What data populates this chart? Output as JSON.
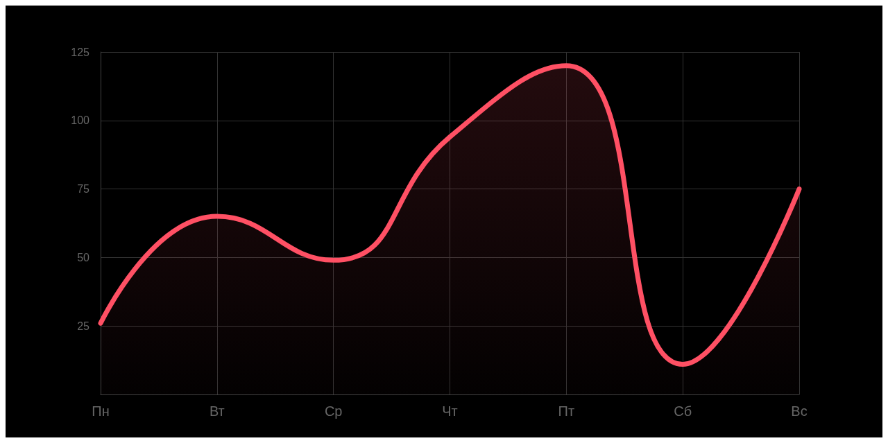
{
  "chart_data": {
    "type": "area",
    "categories": [
      "Пн",
      "Вт",
      "Ср",
      "Чт",
      "Пт",
      "Сб",
      "Вс"
    ],
    "series": [
      {
        "color": "#ff5064",
        "values": [
          26,
          65,
          49,
          94,
          120,
          11,
          75
        ]
      }
    ],
    "ylim": [
      0,
      125
    ],
    "yticks": [
      25,
      50,
      75,
      100,
      125
    ],
    "grid": true,
    "marker": "none",
    "line_style": "solid"
  }
}
